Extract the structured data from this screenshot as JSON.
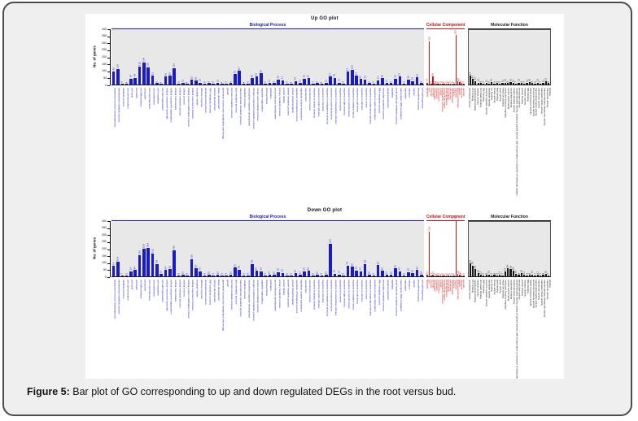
{
  "caption": {
    "prefix": "Figure 5:",
    "text": " Bar plot of GO corresponding to up and down regulated DEGs in the root versus bud."
  },
  "ui_colors": {
    "biological_process": "#1a1acd",
    "cellular_component": "#cc1111",
    "molecular_function": "#1a1a1a",
    "panel_background": "#e8e8e8",
    "card_background": "#efeff0"
  },
  "go_terms": {
    "bp": [
      "anatomical structure morphogenesis",
      "carbohydrate metabolic process",
      "catabolic process",
      "cell communication",
      "cell cycle",
      "cell death",
      "cell differentiation",
      "cell growth",
      "cell morphogenesis",
      "cell proliferation",
      "cell recognition",
      "cell wall organization",
      "cellular component assembly",
      "cellular component organization",
      "cellular homeostasis",
      "cellular metabolic process",
      "cellular process",
      "cellular protein modification process",
      "cellular response to stimulus",
      "circadian rhythm",
      "defense response",
      "developmental process",
      "DNA metabolic process",
      "embryo development",
      "flower development",
      "generation of precursor metabolites and energy",
      "growth",
      "hormone metabolic process",
      "lipid metabolic process",
      "macromolecule metabolic process",
      "metabolic process",
      "multicellular organism development",
      "nitrogen compound metabolic process",
      "nucleic acid metabolic process",
      "organelle organization",
      "photosynthesis",
      "pollination",
      "post-embryonic development",
      "primary metabolic process",
      "protein folding",
      "protein metabolic process",
      "protein phosphorylation",
      "regulation of biological process",
      "regulation of gene expression",
      "reproduction",
      "reproductive process",
      "response to abiotic stimulus",
      "response to biotic stimulus",
      "response to chemical",
      "response to endogenous stimulus",
      "response to external stimulus",
      "response to extracellular stimulus",
      "response to hormone",
      "response to light stimulus",
      "response to osmotic stress",
      "response to oxidative stress",
      "response to salt stress",
      "response to stimulus",
      "response to stress",
      "response to temperature stimulus",
      "response to water deprivation",
      "RNA metabolic process",
      "secondary metabolic process",
      "signal transduction",
      "signaling",
      "small molecule metabolic process",
      "transcription, DNA-templated",
      "translation",
      "transport",
      "tropism",
      "biosynthetic process",
      "cell wall biogenesis"
    ],
    "cc": [
      "apoplast",
      "cell",
      "cell part",
      "cell wall",
      "chloroplast",
      "cytoplasm",
      "cytoskeleton",
      "cytosol",
      "endoplasmic reticulum",
      "extracellular region",
      "Golgi apparatus",
      "intracellular",
      "membrane",
      "mitochondrion",
      "nucleus",
      "organelle",
      "plasma membrane",
      "plastid",
      "ribosome",
      "vacuole"
    ],
    "mf": [
      "antioxidant activity",
      "ATP binding",
      "carbohydrate binding",
      "catalytic activity",
      "chromatin binding",
      "DNA binding",
      "enzyme regulator activity",
      "hydrolase activity",
      "ion binding",
      "kinase activity",
      "lipid binding",
      "lyase activity",
      "metal ion binding",
      "molecular function regulator",
      "nucleic acid binding",
      "nucleotide binding",
      "oxidoreductase activity",
      "oxidoreductase activity, acting on paired donors, with incorporation or reduction of molecular oxygen",
      "peroxidase activity",
      "protein binding",
      "receptor activity",
      "RNA binding",
      "signal transducer activity",
      "structural molecule activity",
      "transcription factor activity",
      "transferase activity",
      "translation factor activity",
      "transmembrane transporter activity",
      "transporter activity",
      "binding"
    ]
  },
  "chart_data": [
    {
      "type": "bar",
      "title": "Up GO plot",
      "ylabel": "No. of genes",
      "ylim": [
        0,
        400
      ],
      "yticks": [
        0,
        50,
        100,
        150,
        200,
        250,
        300,
        350,
        400
      ],
      "grid": false,
      "legend": "none",
      "sections": [
        {
          "name": "Biological Process",
          "color": "#1a1acd",
          "terms": "bp",
          "values": [
            95,
            110,
            6,
            4,
            42,
            48,
            130,
            158,
            122,
            62,
            9,
            4,
            56,
            62,
            116,
            6,
            11,
            4,
            32,
            28,
            13,
            6,
            9,
            5,
            11,
            4,
            6,
            9,
            76,
            96,
            4,
            6,
            46,
            56,
            82,
            5,
            11,
            9,
            36,
            31,
            6,
            4,
            26,
            11,
            42,
            47,
            6,
            9,
            4,
            11,
            57,
            49,
            13,
            6,
            92,
            102,
            62,
            41,
            36,
            9,
            6,
            31,
            46,
            11,
            9,
            42,
            57,
            6,
            36,
            26,
            52,
            9
          ]
        },
        {
          "name": "Cellular Component",
          "color": "#cc1111",
          "terms": "cc",
          "values": [
            14,
            310,
            6,
            58,
            9,
            5,
            4,
            6,
            5,
            4,
            6,
            4,
            5,
            6,
            4,
            352,
            24,
            17,
            9,
            6
          ]
        },
        {
          "name": "Molecular Function",
          "color": "#1a1a1a",
          "terms": "mf",
          "values": [
            64,
            41,
            26,
            13,
            9,
            6,
            11,
            5,
            16,
            6,
            9,
            5,
            11,
            13,
            9,
            16,
            11,
            7,
            13,
            9,
            6,
            11,
            16,
            9,
            6,
            13,
            7,
            11,
            21,
            9
          ]
        }
      ]
    },
    {
      "type": "bar",
      "title": "Down GO plot",
      "ylabel": "No. of genes",
      "ylim": [
        0,
        400
      ],
      "yticks": [
        0,
        50,
        100,
        150,
        200,
        250,
        300,
        350,
        400
      ],
      "grid": false,
      "legend": "none",
      "sections": [
        {
          "name": "Biological Process",
          "color": "#1a1acd",
          "terms": "bp",
          "values": [
            74,
            104,
            7,
            5,
            36,
            44,
            150,
            196,
            204,
            162,
            88,
            16,
            44,
            52,
            186,
            8,
            12,
            5,
            120,
            58,
            36,
            8,
            10,
            6,
            12,
            5,
            8,
            10,
            62,
            48,
            5,
            8,
            88,
            40,
            36,
            6,
            12,
            10,
            30,
            26,
            8,
            5,
            22,
            12,
            36,
            40,
            8,
            10,
            5,
            12,
            232,
            20,
            14,
            8,
            78,
            68,
            42,
            36,
            88,
            10,
            8,
            82,
            40,
            12,
            10,
            56,
            36,
            8,
            30,
            22,
            44,
            10
          ]
        },
        {
          "name": "Cellular Component",
          "color": "#cc1111",
          "terms": "cc",
          "values": [
            12,
            318,
            7,
            10,
            5,
            4,
            6,
            4,
            5,
            4,
            6,
            4,
            5,
            6,
            4,
            398,
            18,
            10,
            7,
            5
          ]
        },
        {
          "name": "Molecular Function",
          "color": "#1a1a1a",
          "terms": "mf",
          "values": [
            92,
            78,
            50,
            22,
            11,
            6,
            9,
            13,
            6,
            9,
            5,
            11,
            7,
            34,
            58,
            52,
            38,
            16,
            9,
            21,
            11,
            6,
            9,
            13,
            7,
            11,
            5,
            9,
            16,
            7
          ]
        }
      ]
    }
  ]
}
